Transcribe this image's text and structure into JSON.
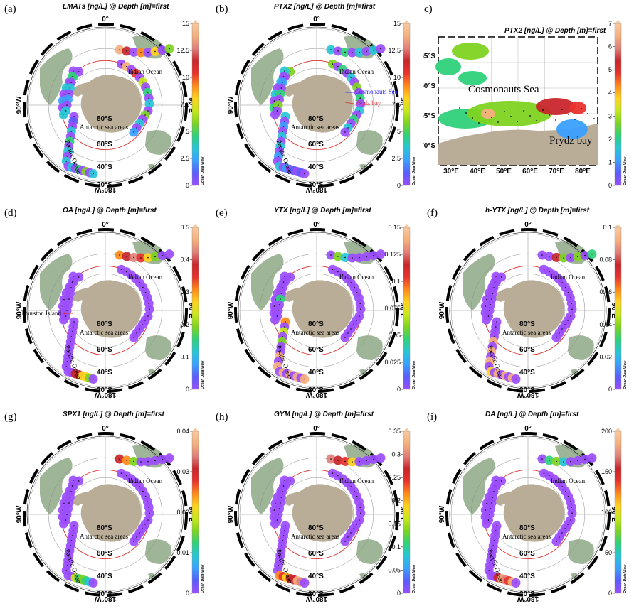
{
  "panels": [
    {
      "id": "a",
      "label": "(a)",
      "title": "LMATs [ng/L] @ Depth [m]=first",
      "ticks": [
        "15",
        "12.5",
        "10",
        "7.5",
        "5",
        "2.5",
        "0"
      ],
      "annotations": [
        {
          "text": "Indian Ocean",
          "role": "indian"
        },
        {
          "text": "Antarctic sea areas",
          "role": "antarctic"
        },
        {
          "text": "Pacific Ocean",
          "role": "pacific"
        }
      ],
      "hot": [
        [
          0,
          0.95
        ],
        [
          1,
          0.8
        ],
        [
          3,
          0.6
        ],
        [
          5,
          0.5
        ],
        [
          7,
          0.35
        ],
        [
          9,
          0.9
        ],
        [
          11,
          0.7
        ],
        [
          13,
          0.45
        ],
        [
          15,
          0.3
        ],
        [
          17,
          0.25
        ],
        [
          19,
          0.4
        ],
        [
          21,
          0.2
        ],
        [
          23,
          0.15
        ],
        [
          25,
          0.3
        ],
        [
          27,
          0.2
        ],
        [
          29,
          0.15
        ],
        [
          31,
          0.2
        ],
        [
          33,
          0.3
        ],
        [
          35,
          0.25
        ],
        [
          37,
          0.15
        ],
        [
          39,
          0.2
        ],
        [
          41,
          0.1
        ],
        [
          43,
          0.2
        ],
        [
          45,
          0.3
        ],
        [
          47,
          0.25
        ],
        [
          49,
          0.2
        ],
        [
          51,
          0.2
        ],
        [
          53,
          0.3
        ],
        [
          55,
          0.35
        ],
        [
          57,
          0.25
        ]
      ]
    },
    {
      "id": "b",
      "label": "(b)",
      "title": "PTX2 [ng/L] @ Depth [m]=first",
      "ticks": [
        "15",
        "12.5",
        "10",
        "7.5",
        "5",
        "2.5",
        "0"
      ],
      "annotations": [
        {
          "text": "Indian Ocean",
          "role": "indian"
        },
        {
          "text": "Cosmonauts Sea",
          "role": "cosmonauts"
        },
        {
          "text": "Prydz bay",
          "role": "prydz"
        },
        {
          "text": "Antarctic sea areas",
          "role": "antarctic"
        },
        {
          "text": "Pacific Ocean",
          "role": "pacific"
        }
      ],
      "hot": [
        [
          0,
          0.2
        ],
        [
          2,
          0.3
        ],
        [
          4,
          0.25
        ],
        [
          6,
          0.2
        ],
        [
          8,
          0.35
        ],
        [
          10,
          0.3
        ],
        [
          12,
          0.25
        ],
        [
          14,
          0.4
        ],
        [
          16,
          0.3
        ],
        [
          18,
          0.2
        ],
        [
          20,
          0.3
        ],
        [
          22,
          0.25
        ],
        [
          24,
          0.35
        ],
        [
          26,
          0.25
        ],
        [
          28,
          0.2
        ],
        [
          30,
          0.3
        ],
        [
          32,
          0.2
        ],
        [
          34,
          0.15
        ],
        [
          36,
          0.3
        ],
        [
          38,
          0.35
        ],
        [
          40,
          0.2
        ],
        [
          42,
          0.15
        ],
        [
          44,
          0.25
        ],
        [
          46,
          0.2
        ],
        [
          48,
          0.15
        ],
        [
          50,
          0.2
        ],
        [
          52,
          0.15
        ],
        [
          54,
          0.1
        ],
        [
          56,
          0.1
        ]
      ]
    },
    {
      "id": "c",
      "label": "c)",
      "title": "PTX2 [ng/L] @ Depth [m]=first",
      "ticks": [
        "7",
        "6",
        "5",
        "4",
        "3",
        "2",
        "1",
        "0"
      ],
      "xticks": [
        "30°E",
        "40°E",
        "50°E",
        "60°E",
        "70°E",
        "80°E"
      ],
      "yticks": [
        "55°S",
        "60°S",
        "65°S",
        "70°S"
      ],
      "annotations": [
        {
          "text": "Cosmonauts Sea",
          "role": "cosmonauts"
        },
        {
          "text": "Prydz bay",
          "role": "prydz"
        }
      ]
    },
    {
      "id": "d",
      "label": "(d)",
      "title": "OA [ng/L] @ Depth [m]=first",
      "ticks": [
        "0.5",
        "0.4",
        "0.3",
        "0.2",
        "0.1",
        "0"
      ],
      "annotations": [
        {
          "text": "Indian Ocean",
          "role": "indian"
        },
        {
          "text": "Thurston Island",
          "role": "thurston"
        },
        {
          "text": "Antarctic sea areas",
          "role": "antarctic"
        },
        {
          "text": "Pacific Ocean",
          "role": "pacific"
        }
      ],
      "hot": [
        [
          0,
          0.6
        ],
        [
          1,
          0.75
        ],
        [
          2,
          0.85
        ],
        [
          3,
          0.7
        ],
        [
          4,
          0.5
        ],
        [
          5,
          0.4
        ],
        [
          52,
          0.8
        ],
        [
          53,
          0.75
        ],
        [
          54,
          0.5
        ],
        [
          55,
          0.55
        ],
        [
          56,
          0.35
        ]
      ]
    },
    {
      "id": "e",
      "label": "(e)",
      "title": "YTX [ng/L] @ Depth [m]=first",
      "ticks": [
        "0.15",
        "0.125",
        "0.1",
        "0.075",
        "0.05",
        "0.025",
        "0"
      ],
      "annotations": [
        {
          "text": "Indian Ocean",
          "role": "indian"
        },
        {
          "text": "Antarctic sea areas",
          "role": "antarctic"
        },
        {
          "text": "Pacific Ocean",
          "role": "pacific"
        }
      ],
      "hot": [
        [
          1,
          0.35
        ],
        [
          2,
          0.25
        ],
        [
          36,
          0.3
        ],
        [
          40,
          0.6
        ],
        [
          42,
          0.45
        ],
        [
          44,
          0.4
        ],
        [
          47,
          0.95
        ],
        [
          49,
          0.95
        ],
        [
          51,
          0.95
        ],
        [
          53,
          0.95
        ],
        [
          55,
          0.95
        ],
        [
          57,
          0.95
        ]
      ]
    },
    {
      "id": "f",
      "label": "(f)",
      "title": "h-YTX [ng/L] @ Depth [m]=first",
      "ticks": [
        "0.1",
        "0.08",
        "0.06",
        "0.04",
        "0.02",
        "0"
      ],
      "annotations": [
        {
          "text": "Indian Ocean",
          "role": "indian"
        },
        {
          "text": "Antarctic sea areas",
          "role": "antarctic"
        },
        {
          "text": "Pacific Ocean",
          "role": "pacific"
        }
      ],
      "hot": [
        [
          2,
          0.8
        ],
        [
          3,
          0.35
        ],
        [
          5,
          0.4
        ],
        [
          7,
          0.3
        ],
        [
          44,
          0.9
        ],
        [
          46,
          0.95
        ],
        [
          48,
          0.95
        ],
        [
          50,
          0.5
        ],
        [
          52,
          0.95
        ],
        [
          54,
          0.95
        ],
        [
          56,
          0.95
        ]
      ]
    },
    {
      "id": "g",
      "label": "(g)",
      "title": "SPX1 [ng/L] @ Depth [m]=first",
      "ticks": [
        "0.04",
        "0.03",
        "0.02",
        "0.01",
        "0"
      ],
      "annotations": [
        {
          "text": "Indian Ocean",
          "role": "indian"
        },
        {
          "text": "Antarctic sea areas",
          "role": "antarctic"
        },
        {
          "text": "Pacific Ocean",
          "role": "pacific"
        }
      ],
      "hot": [
        [
          0,
          0.8
        ],
        [
          1,
          0.6
        ],
        [
          2,
          0.35
        ],
        [
          52,
          0.45
        ],
        [
          53,
          0.3
        ],
        [
          54,
          0.35
        ],
        [
          55,
          0.3
        ],
        [
          56,
          0.25
        ]
      ]
    },
    {
      "id": "h",
      "label": "(h)",
      "title": "GYM [ng/L] @ Depth [m]=first",
      "ticks": [
        "0.35",
        "0.3",
        "0.25",
        "0.2",
        "0.15",
        "0.1",
        "0.05",
        "0"
      ],
      "annotations": [
        {
          "text": "Indian Ocean",
          "role": "indian"
        },
        {
          "text": "Antarctic sea areas",
          "role": "antarctic"
        },
        {
          "text": "Pacific Ocean",
          "role": "pacific"
        }
      ],
      "hot": [
        [
          0,
          0.85
        ],
        [
          1,
          0.8
        ],
        [
          2,
          0.7
        ],
        [
          3,
          0.5
        ],
        [
          50,
          0.6
        ],
        [
          51,
          0.7
        ],
        [
          52,
          0.55
        ],
        [
          53,
          0.8
        ],
        [
          54,
          0.75
        ],
        [
          55,
          0.9
        ],
        [
          56,
          0.85
        ]
      ]
    },
    {
      "id": "i",
      "label": "(i)",
      "title": "DA [ng/L] @ Depth [m]=first",
      "ticks": [
        "200",
        "150",
        "100",
        "50",
        "0"
      ],
      "annotations": [
        {
          "text": "Indian Ocean",
          "role": "indian"
        },
        {
          "text": "Antarctic sea areas",
          "role": "antarctic"
        },
        {
          "text": "Pacific Ocean",
          "role": "pacific"
        }
      ],
      "hot": [
        [
          1,
          0.3
        ],
        [
          2,
          0.35
        ],
        [
          3,
          0.25
        ],
        [
          52,
          0.8
        ],
        [
          53,
          0.9
        ],
        [
          54,
          0.85
        ],
        [
          55,
          0.7
        ],
        [
          56,
          0.95
        ]
      ]
    }
  ],
  "map_labels": {
    "top": "0°",
    "right": "90°E",
    "bottom": "180°W",
    "left": "90°W",
    "lat80": "80°S",
    "lat60": "60°S",
    "lat40": "40°S",
    "lat20": "20°S"
  },
  "odv_label": "Ocean Data View",
  "colors": {
    "colormap": [
      "#9b4dff",
      "#5a5cff",
      "#3aa0ff",
      "#27c6d6",
      "#2fd17a",
      "#7ed321",
      "#c7e81c",
      "#ffd21f",
      "#ff8a1a",
      "#e8332d",
      "#c8262b",
      "#e0807a",
      "#f5b07d",
      "#f9c9a0"
    ],
    "antarctica": "#b9ad98",
    "land": "#9fb598",
    "ring": "#d9302c"
  }
}
